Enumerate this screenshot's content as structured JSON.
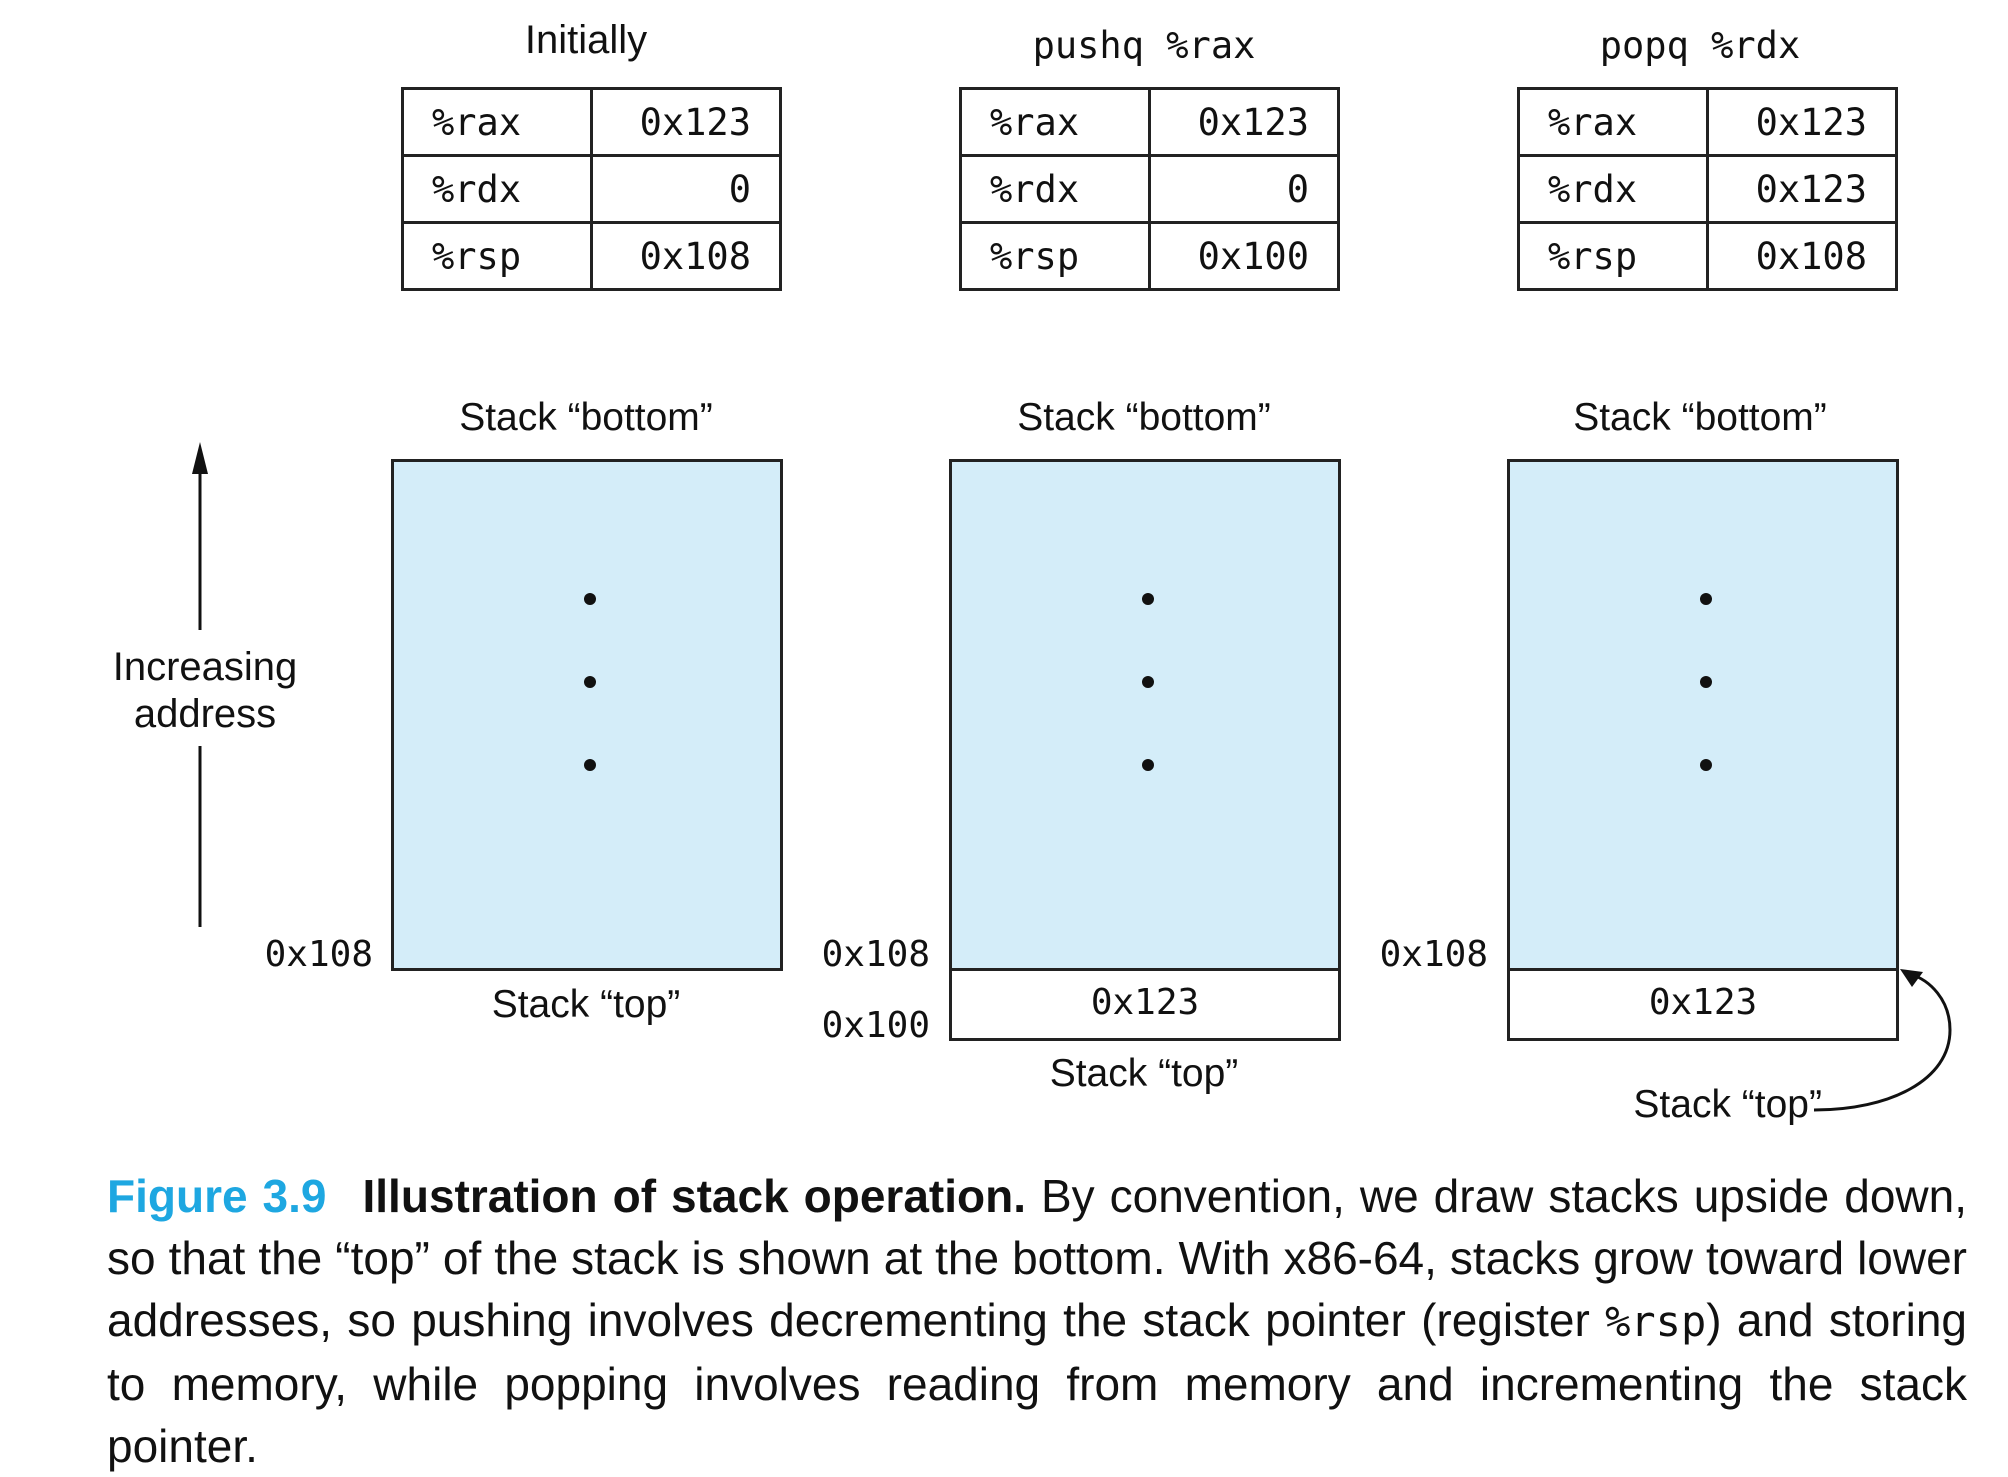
{
  "panels": [
    {
      "title": "Initially",
      "registers": [
        {
          "name": "%rax",
          "value": "0x123"
        },
        {
          "name": "%rdx",
          "value": "0"
        },
        {
          "name": "%rsp",
          "value": "0x108"
        }
      ],
      "stack_bottom_label": "Stack “bottom”",
      "stack_top_label": "Stack “top”",
      "addresses": [
        "0x108"
      ],
      "cells": []
    },
    {
      "title": "pushq %rax",
      "registers": [
        {
          "name": "%rax",
          "value": "0x123"
        },
        {
          "name": "%rdx",
          "value": "0"
        },
        {
          "name": "%rsp",
          "value": "0x100"
        }
      ],
      "stack_bottom_label": "Stack “bottom”",
      "stack_top_label": "Stack “top”",
      "addresses": [
        "0x108",
        "0x100"
      ],
      "cells": [
        "0x123"
      ]
    },
    {
      "title": "popq %rdx",
      "registers": [
        {
          "name": "%rax",
          "value": "0x123"
        },
        {
          "name": "%rdx",
          "value": "0x123"
        },
        {
          "name": "%rsp",
          "value": "0x108"
        }
      ],
      "stack_bottom_label": "Stack “bottom”",
      "stack_top_label": "Stack “top”",
      "addresses": [
        "0x108"
      ],
      "cells": [
        "0x123"
      ]
    }
  ],
  "axis_label_line1": "Increasing",
  "axis_label_line2": "address",
  "caption": {
    "figure_number": "Figure 3.9",
    "title": "Illustration of stack operation.",
    "text_part1": "By convention, we draw stacks upside down, so that the “top” of the stack is shown at the bottom. With x86-64, stacks grow toward lower addresses, so pushing involves decrementing the stack pointer (register",
    "code": "%rsp",
    "text_part2": ") and storing to memory, while popping involves reading from memory and incrementing the stack pointer."
  }
}
